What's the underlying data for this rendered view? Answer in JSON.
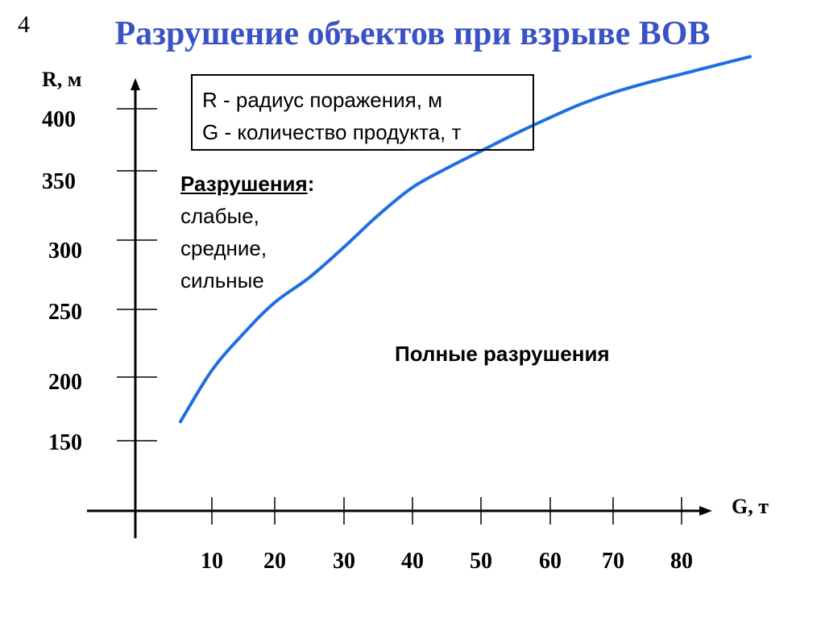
{
  "slide_number": "4",
  "title": "Разрушение объектов при взрыве ВОВ",
  "legend": {
    "line1": "R - радиус поражения, м",
    "line2": "G - количество продукта, т"
  },
  "annotations": {
    "destruction_title": "Разрушения",
    "destruction_colon": ":",
    "weak": "слабые,",
    "medium": "средние,",
    "strong": "сильные",
    "full": "Полные разрушения"
  },
  "colors": {
    "title": "#3a53c4",
    "curve": "#1f6fe0",
    "axis": "#000000"
  },
  "chart_data": {
    "type": "line",
    "xlabel": "G, т",
    "ylabel": "R, м",
    "x_ticks": [
      10,
      20,
      30,
      40,
      50,
      60,
      70,
      80
    ],
    "y_ticks": [
      150,
      200,
      250,
      300,
      350,
      400
    ],
    "grid": false,
    "series": [
      {
        "values": [
          {
            "x": 5,
            "y": 165
          },
          {
            "x": 10,
            "y": 205
          },
          {
            "x": 15,
            "y": 232
          },
          {
            "x": 20,
            "y": 255
          },
          {
            "x": 25,
            "y": 273
          },
          {
            "x": 30,
            "y": 295
          },
          {
            "x": 35,
            "y": 318
          },
          {
            "x": 40,
            "y": 338
          },
          {
            "x": 45,
            "y": 352
          },
          {
            "x": 50,
            "y": 366
          },
          {
            "x": 55,
            "y": 380
          },
          {
            "x": 60,
            "y": 393
          },
          {
            "x": 65,
            "y": 404
          },
          {
            "x": 70,
            "y": 413
          },
          {
            "x": 75,
            "y": 421
          },
          {
            "x": 80,
            "y": 428
          },
          {
            "x": 85,
            "y": 435
          },
          {
            "x": 90,
            "y": 442
          }
        ]
      }
    ]
  }
}
